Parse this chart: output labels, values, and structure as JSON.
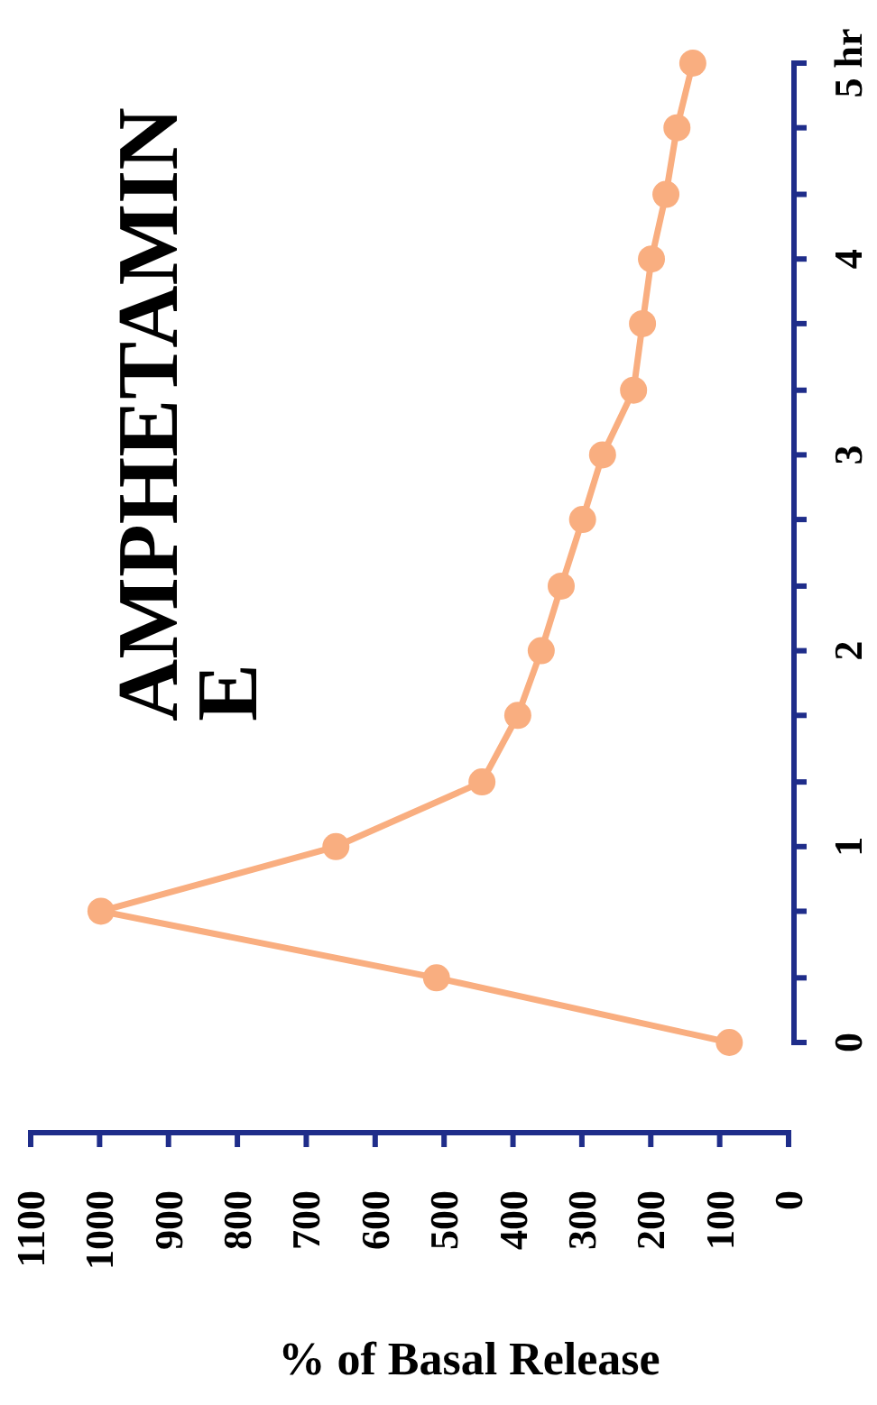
{
  "chart_data": {
    "type": "line",
    "title": "AMPHETAMINE",
    "xlabel": "% of Basal Release",
    "x": [
      86,
      511,
      998,
      657,
      445,
      393,
      359,
      330,
      299,
      270,
      225,
      212,
      199,
      178,
      162,
      139
    ],
    "series": [
      {
        "color": "#f9ae80",
        "values": [
          0,
          0.33,
          0.67,
          1,
          1.33,
          1.67,
          2,
          2.33,
          2.67,
          3,
          3.33,
          3.67,
          4,
          4.33,
          4.67,
          5
        ]
      }
    ],
    "xlim": [
      1100,
      0
    ],
    "xticks": [
      0,
      100,
      200,
      300,
      400,
      500,
      600,
      700,
      800,
      900,
      1000,
      1100
    ],
    "ylim": [
      0,
      5
    ],
    "yticks": [
      0,
      {
        "value": 0.33,
        "label": null
      },
      {
        "value": 0.67,
        "label": null
      },
      1,
      {
        "value": 1.33,
        "label": null
      },
      {
        "value": 1.67,
        "label": null
      },
      2,
      {
        "value": 2.33,
        "label": null
      },
      {
        "value": 2.67,
        "label": null
      },
      3,
      {
        "value": 3.33,
        "label": null
      },
      {
        "value": 3.67,
        "label": null
      },
      4,
      {
        "value": 4.33,
        "label": null
      },
      {
        "value": 4.67,
        "label": null
      },
      {
        "value": 5,
        "label": "5 hr"
      }
    ],
    "grid": false,
    "marker": "circle",
    "line_style": "solid"
  }
}
